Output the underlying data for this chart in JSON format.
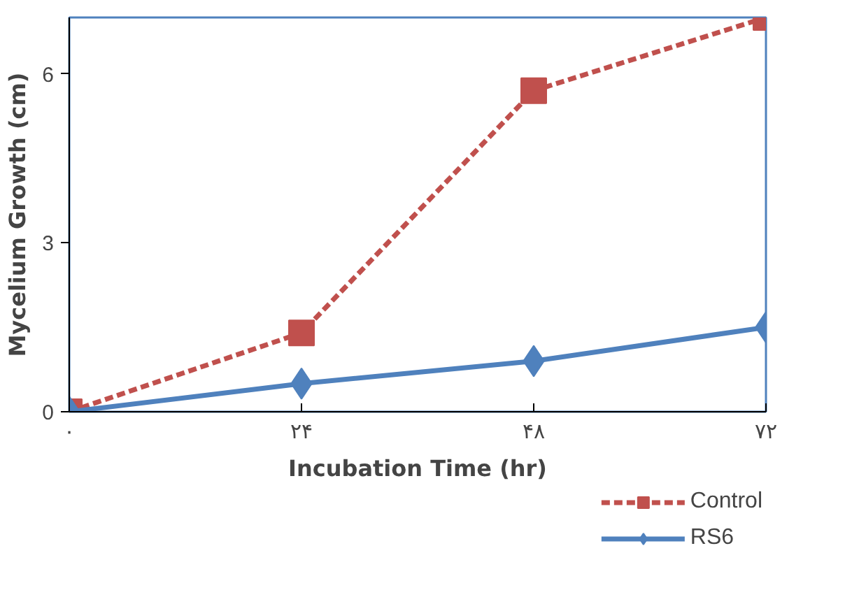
{
  "chart_data": {
    "type": "line",
    "xlabel": "Incubation Time (hr)",
    "ylabel": "Mycelium Growth (cm)",
    "x": [
      0,
      24,
      48,
      72
    ],
    "xlim": [
      0,
      72
    ],
    "xticks": [
      {
        "value": 0,
        "label": "۰"
      },
      {
        "value": 24,
        "label": "۲۴"
      },
      {
        "value": 48,
        "label": "۴۸"
      },
      {
        "value": 72,
        "label": "۷۲"
      }
    ],
    "ylim": [
      0,
      7
    ],
    "yticks": [
      0,
      3,
      6
    ],
    "grid": false,
    "legend": "bottom right",
    "series": [
      {
        "name": "Control",
        "color": "#c0504d",
        "values": [
          0,
          1.4,
          5.7,
          7.0
        ],
        "marker": "square",
        "line_style": "dashed"
      },
      {
        "name": "RS6",
        "color": "#4f81bd",
        "values": [
          0,
          0.5,
          0.9,
          1.5
        ],
        "marker": "diamond",
        "line_style": "solid"
      }
    ]
  }
}
